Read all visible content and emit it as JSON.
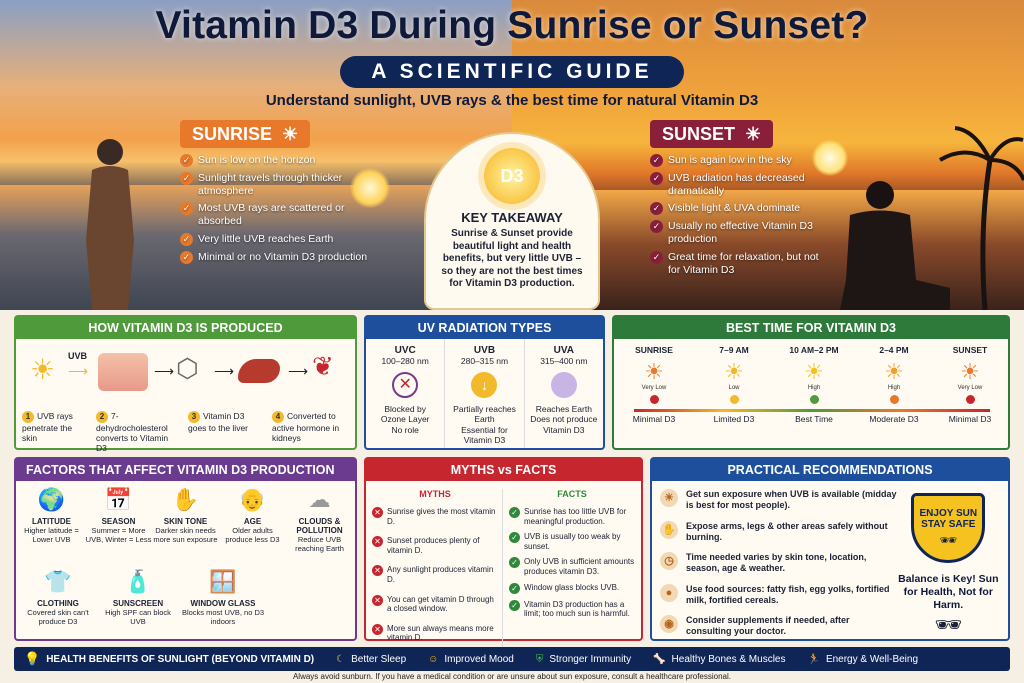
{
  "header": {
    "title": "Vitamin D3 During Sunrise or Sunset?",
    "guide": "A SCIENTIFIC GUIDE",
    "subtitle": "Understand sunlight, UVB rays & the best time for natural Vitamin D3"
  },
  "sunrise": {
    "label": "SUNRISE",
    "points": [
      "Sun is low on the horizon",
      "Sunlight travels through thicker atmosphere",
      "Most UVB rays are scattered or absorbed",
      "Very little UVB reaches Earth",
      "Minimal or no Vitamin D3 production"
    ]
  },
  "sunset": {
    "label": "SUNSET",
    "points": [
      "Sun is again low in the sky",
      "UVB radiation has decreased dramatically",
      "Visible light & UVA dominate",
      "Usually no effective Vitamin D3 production",
      "Great time for relaxation, but not for Vitamin D3"
    ]
  },
  "takeaway": {
    "badge": "D3",
    "title": "KEY TAKEAWAY",
    "text": "Sunrise & Sunset provide beautiful light and health benefits, but very little UVB – so they are not the best times for Vitamin D3 production."
  },
  "produced": {
    "title": "HOW VITAMIN D3 IS PRODUCED",
    "uvb": "UVB",
    "steps": [
      {
        "n": "1",
        "t": "UVB rays penetrate the skin"
      },
      {
        "n": "2",
        "t": "7-dehydrocholesterol converts to Vitamin D3"
      },
      {
        "n": "3",
        "t": "Vitamin D3 goes to the liver"
      },
      {
        "n": "4",
        "t": "Converted to active hormone in kidneys"
      }
    ]
  },
  "uv": {
    "title": "UV RADIATION TYPES",
    "types": [
      {
        "name": "UVC",
        "range": "100–280 nm",
        "d1": "Blocked by",
        "d2": "Ozone Layer",
        "d3": "No role"
      },
      {
        "name": "UVB",
        "range": "280–315 nm",
        "d1": "Partially reaches Earth",
        "d2": "Essential for",
        "d3": "Vitamin D3"
      },
      {
        "name": "UVA",
        "range": "315–400 nm",
        "d1": "Reaches Earth",
        "d2": "Does not produce",
        "d3": "Vitamin D3"
      }
    ]
  },
  "best": {
    "title": "BEST TIME FOR VITAMIN D3",
    "times": [
      {
        "t": "SUNRISE",
        "tag": "Very Low",
        "lv": "Minimal D3",
        "c": "#c6262e"
      },
      {
        "t": "7–9 AM",
        "tag": "Low",
        "lv": "Limited D3",
        "c": "#f2b92b"
      },
      {
        "t": "10 AM–2 PM",
        "tag": "High",
        "lv": "Best Time",
        "c": "#4f9a3a"
      },
      {
        "t": "2–4 PM",
        "tag": "High",
        "lv": "Moderate D3",
        "c": "#e8782a"
      },
      {
        "t": "SUNSET",
        "tag": "Very Low",
        "lv": "Minimal D3",
        "c": "#c6262e"
      }
    ]
  },
  "factors": {
    "title": "FACTORS THAT AFFECT VITAMIN D3 PRODUCTION",
    "items": [
      {
        "t": "LATITUDE",
        "d": "Higher latitude = Lower UVB",
        "i": "🌍"
      },
      {
        "t": "SEASON",
        "d": "Summer = More UVB, Winter = Less",
        "i": "📅"
      },
      {
        "t": "SKIN TONE",
        "d": "Darker skin needs more sun exposure",
        "i": "✋"
      },
      {
        "t": "AGE",
        "d": "Older adults produce less D3",
        "i": "👴"
      },
      {
        "t": "CLOUDS & POLLUTION",
        "d": "Reduce UVB reaching Earth",
        "i": "☁"
      },
      {
        "t": "CLOTHING",
        "d": "Covered skin can't produce D3",
        "i": "👕"
      },
      {
        "t": "SUNSCREEN",
        "d": "High SPF can block UVB",
        "i": "🧴"
      },
      {
        "t": "WINDOW GLASS",
        "d": "Blocks most UVB, no D3 indoors",
        "i": "🪟"
      }
    ]
  },
  "myths": {
    "title": "MYTHS vs FACTS",
    "mh": "MYTHS",
    "fh": "FACTS",
    "myths": [
      "Sunrise gives the most vitamin D.",
      "Sunset produces plenty of vitamin D.",
      "Any sunlight produces vitamin D.",
      "You can get vitamin D through a closed window.",
      "More sun always means more vitamin D."
    ],
    "facts": [
      "Sunrise has too little UVB for meaningful production.",
      "UVB is usually too weak by sunset.",
      "Only UVB in sufficient amounts produces vitamin D3.",
      "Window glass blocks UVB.",
      "Vitamin D3 production has a limit; too much sun is harmful."
    ]
  },
  "recs": {
    "title": "PRACTICAL RECOMMENDATIONS",
    "items": [
      "Get sun exposure when UVB is available (midday is best for most people).",
      "Expose arms, legs & other areas safely without burning.",
      "Time needed varies by skin tone, location, season, age & weather.",
      "Use food sources: fatty fish, egg yolks, fortified milk, fortified cereals.",
      "Consider supplements if needed, after consulting your doctor."
    ],
    "shield1": "ENJOY SUN",
    "shield2": "STAY SAFE",
    "balance": "Balance is Key! Sun for Health, Not for Harm."
  },
  "footer": {
    "title": "HEALTH BENEFITS OF SUNLIGHT (BEYOND VITAMIN D)",
    "items": [
      "Better Sleep",
      "Improved Mood",
      "Stronger Immunity",
      "Healthy Bones & Muscles",
      "Energy & Well-Being"
    ],
    "disclaimer": "Always avoid sunburn. If you have a medical condition or are unsure about sun exposure, consult a healthcare professional."
  }
}
